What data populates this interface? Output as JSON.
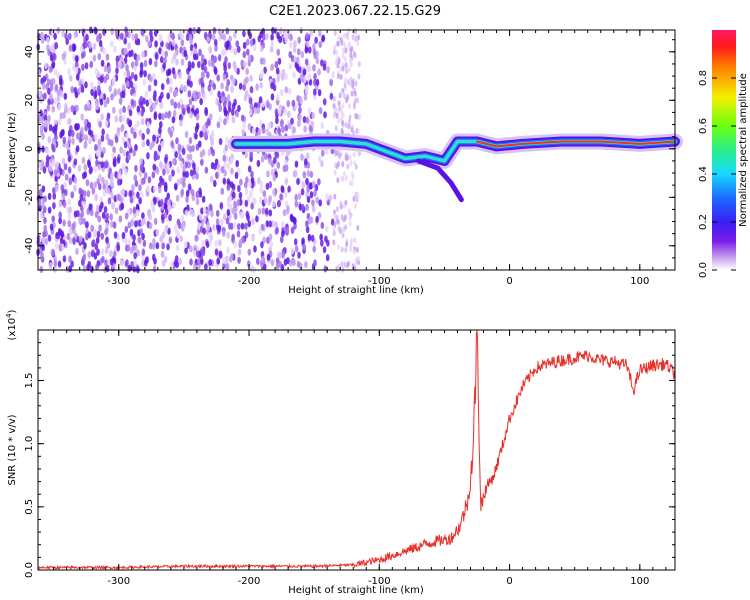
{
  "figure_title": "C2E1.2023.067.22.15.G29",
  "chart_data": [
    {
      "type": "heatmap",
      "title": "",
      "xlabel": "Height of straight line (km)",
      "ylabel": "Frequency (Hz)",
      "xlim": [
        -362,
        127
      ],
      "ylim": [
        -50,
        49
      ],
      "xticks": [
        -300,
        -200,
        -100,
        0,
        100
      ],
      "yticks": [
        -40,
        -20,
        0,
        20,
        40
      ],
      "colorbar": {
        "label": "Normalized spectral amplitude",
        "range": [
          0.0,
          1.0
        ],
        "ticks": [
          0.0,
          0.2,
          0.4,
          0.6,
          0.8
        ],
        "colormap": "rainbow (purple-blue-cyan-green-yellow-red-magenta)"
      },
      "features": {
        "noise_region_x": [
          -362,
          -135
        ],
        "sparse_noise_region_x": [
          -135,
          -115
        ],
        "signal_track": [
          {
            "x": -210,
            "y": 2
          },
          {
            "x": -190,
            "y": 2
          },
          {
            "x": -170,
            "y": 2
          },
          {
            "x": -150,
            "y": 3
          },
          {
            "x": -130,
            "y": 3
          },
          {
            "x": -110,
            "y": 2
          },
          {
            "x": -95,
            "y": -1
          },
          {
            "x": -80,
            "y": -4
          },
          {
            "x": -65,
            "y": -3
          },
          {
            "x": -50,
            "y": -5
          },
          {
            "x": -40,
            "y": 3
          },
          {
            "x": -25,
            "y": 3
          },
          {
            "x": -10,
            "y": 1
          },
          {
            "x": 10,
            "y": 2
          },
          {
            "x": 40,
            "y": 3
          },
          {
            "x": 70,
            "y": 3
          },
          {
            "x": 100,
            "y": 2
          },
          {
            "x": 127,
            "y": 3
          }
        ],
        "side_branch": [
          {
            "x": -70,
            "y": -5
          },
          {
            "x": -55,
            "y": -8
          },
          {
            "x": -45,
            "y": -14
          },
          {
            "x": -37,
            "y": -21
          }
        ]
      }
    },
    {
      "type": "line",
      "title": "",
      "xlabel": "Height of straight line (km)",
      "ylabel": "SNR (10 * v/v)",
      "y_multiplier": "(x10^4)",
      "xlim": [
        -362,
        127
      ],
      "ylim": [
        0,
        1.9
      ],
      "xticks": [
        -300,
        -200,
        -100,
        0,
        100
      ],
      "yticks": [
        0.0,
        0.5,
        1.0,
        1.5
      ],
      "series": [
        {
          "color": "#e8312b",
          "x": [
            -362,
            -300,
            -250,
            -200,
            -150,
            -120,
            -100,
            -80,
            -60,
            -45,
            -38,
            -32,
            -28,
            -25,
            -22,
            -18,
            -12,
            -5,
            0,
            10,
            20,
            35,
            50,
            60,
            70,
            80,
            90,
            95,
            100,
            110,
            120,
            127
          ],
          "y": [
            0.02,
            0.02,
            0.03,
            0.03,
            0.03,
            0.04,
            0.08,
            0.15,
            0.22,
            0.25,
            0.35,
            0.55,
            0.95,
            1.85,
            0.5,
            0.65,
            0.75,
            1.0,
            1.2,
            1.45,
            1.6,
            1.65,
            1.68,
            1.7,
            1.66,
            1.65,
            1.62,
            1.42,
            1.58,
            1.62,
            1.63,
            1.55
          ]
        }
      ]
    }
  ]
}
